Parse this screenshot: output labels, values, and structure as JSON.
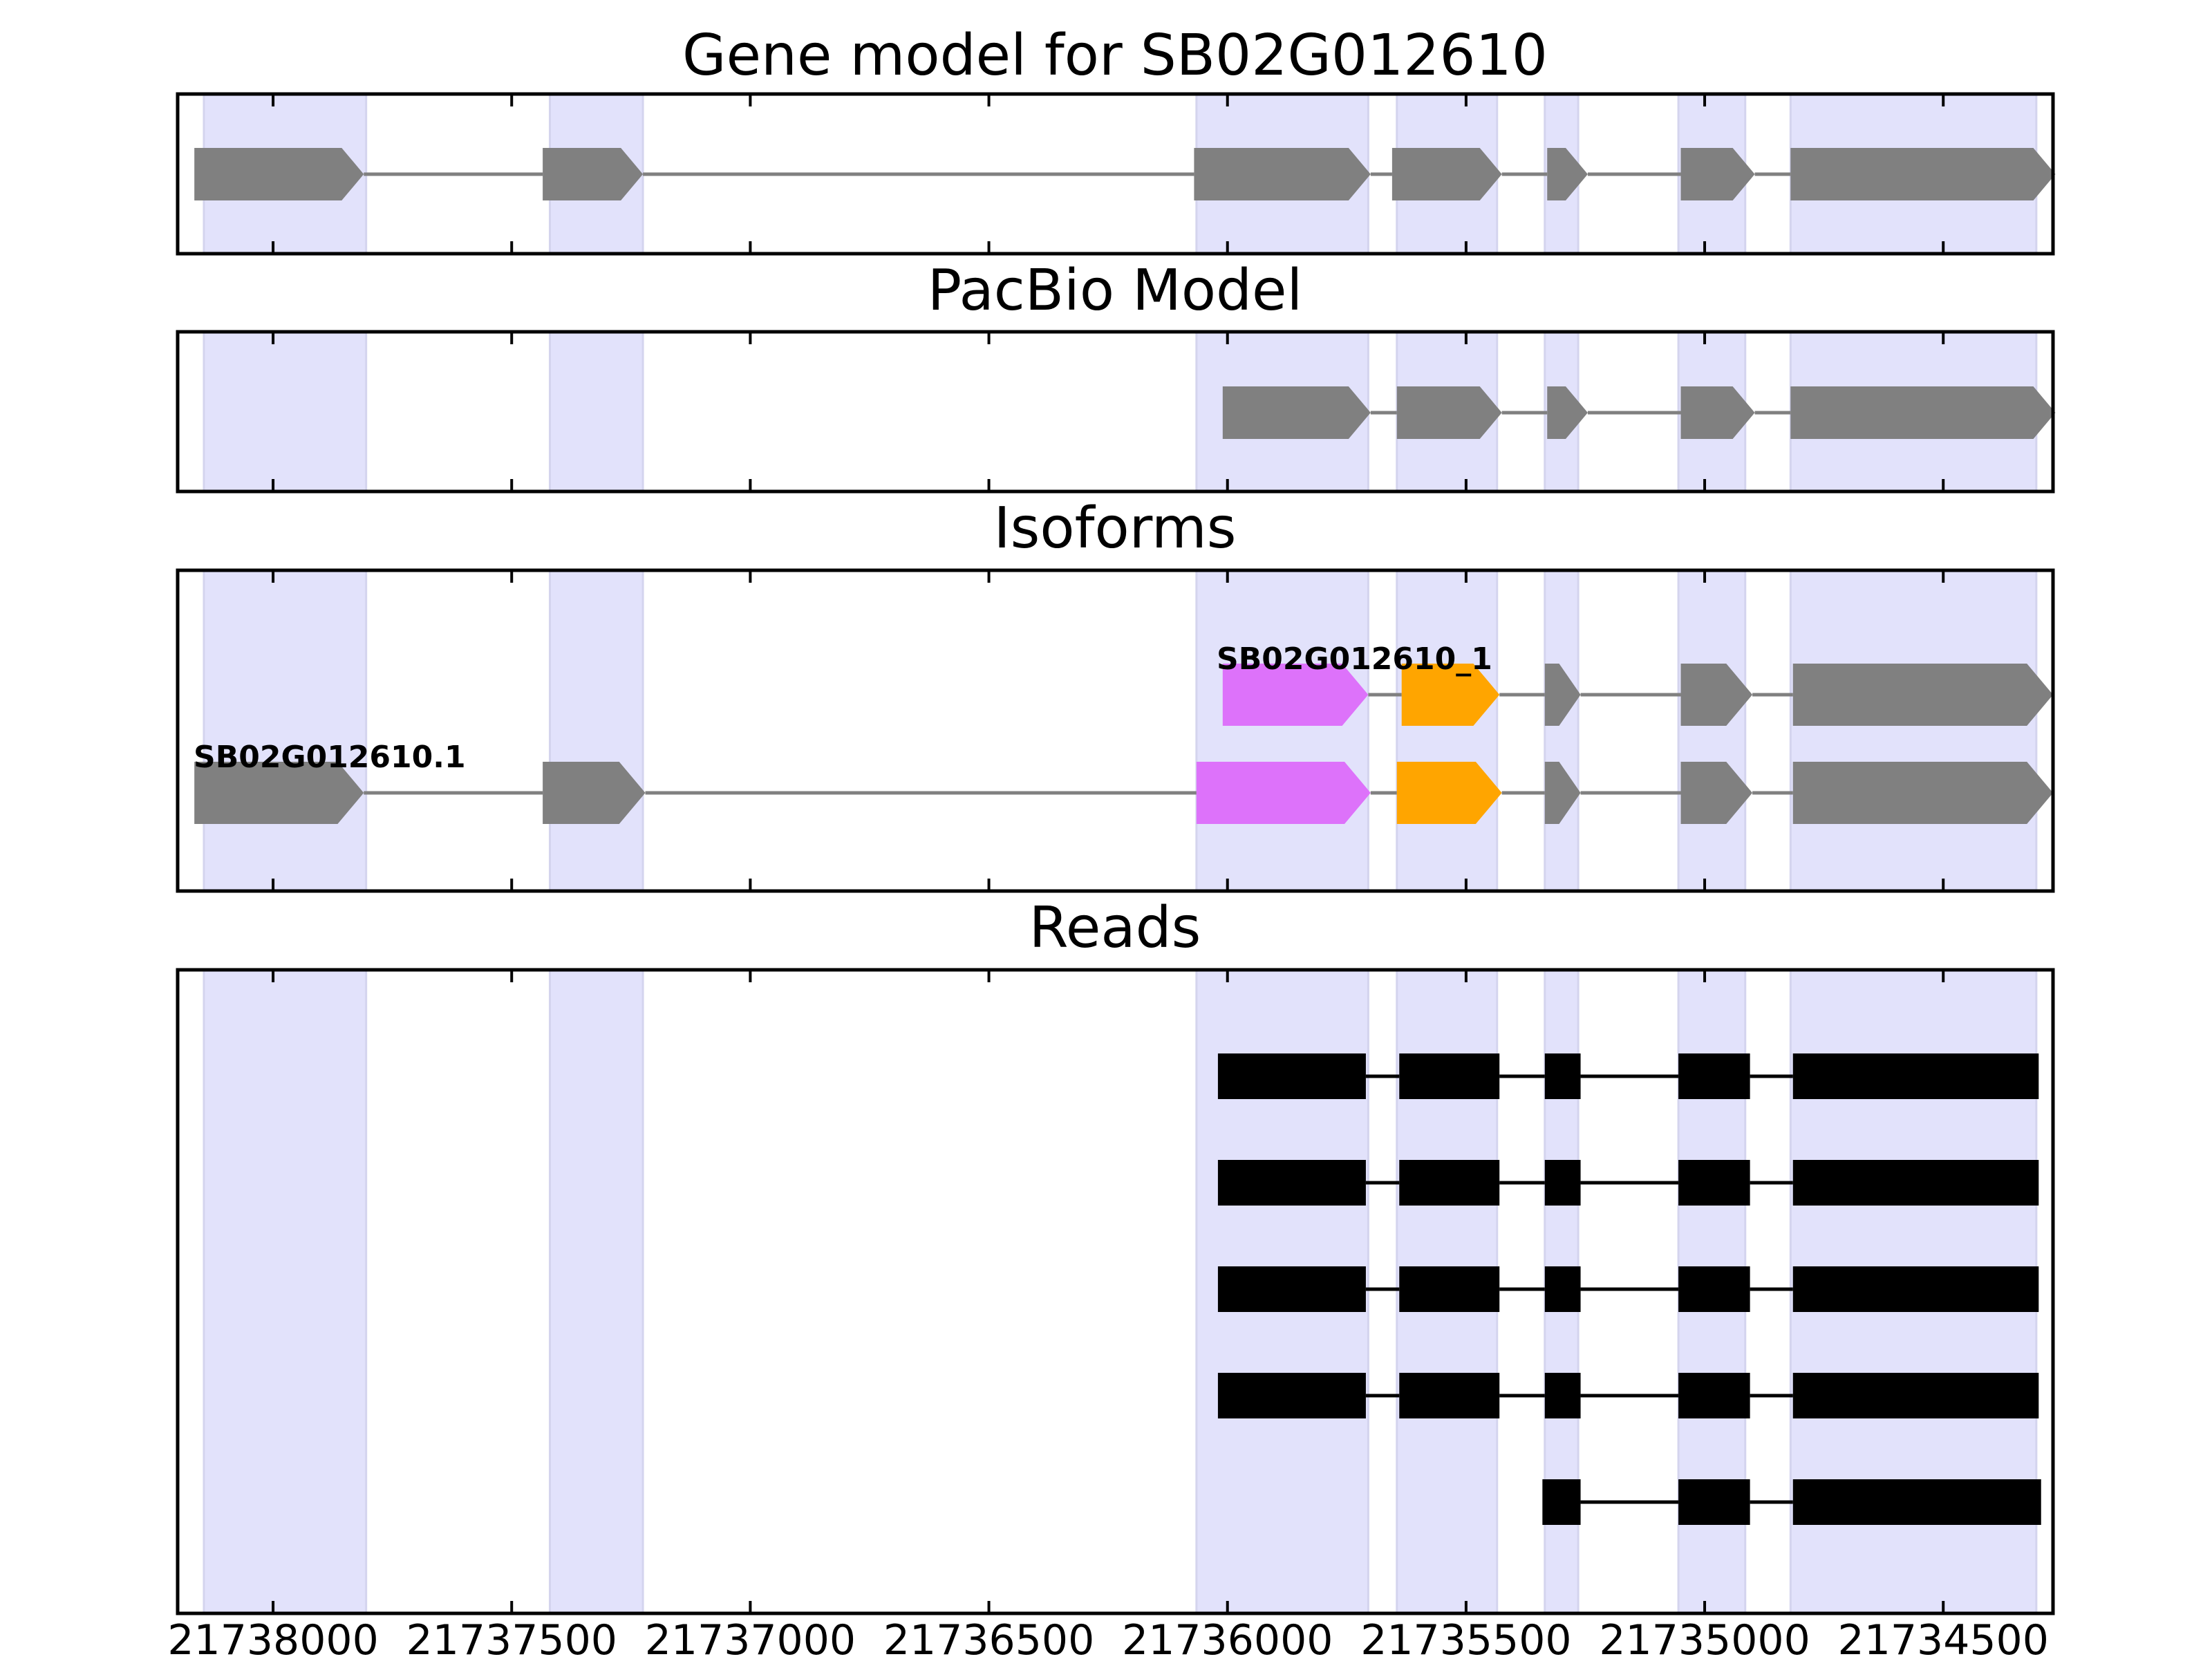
{
  "chart_data": {
    "type": "gene_structure",
    "x_axis": {
      "direction": "reversed",
      "xlim": [
        21738200,
        21734270
      ],
      "ticks": [
        21738000,
        21737500,
        21737000,
        21736500,
        21736000,
        21735500,
        21735000,
        21734500
      ],
      "tick_labels": [
        "21738000",
        "21737500",
        "21737000",
        "21736500",
        "21736000",
        "21735500",
        "21735000",
        "21734500"
      ]
    },
    "colors": {
      "highlight": "#e2e2fb",
      "highlight_edge": "#d4d4ee",
      "exon": "#808080",
      "intron": "#808080",
      "read": "#000000",
      "magenta": "#dd72fa",
      "orange": "#ffa500"
    },
    "highlight_regions": [
      [
        21738145,
        21737805
      ],
      [
        21737420,
        21737225
      ],
      [
        21736065,
        21735705
      ],
      [
        21735645,
        21735435
      ],
      [
        21735335,
        21735265
      ],
      [
        21735055,
        21734915
      ],
      [
        21734820,
        21734305
      ]
    ],
    "panels": [
      {
        "title": "Gene model for SB02G012610",
        "rows": [
          {
            "label": "",
            "style": "arrow",
            "exons": [
              {
                "start": 21738165,
                "end": 21737810
              },
              {
                "start": 21737435,
                "end": 21737225
              },
              {
                "start": 21736070,
                "end": 21735700
              },
              {
                "start": 21735655,
                "end": 21735425
              },
              {
                "start": 21735330,
                "end": 21735245
              },
              {
                "start": 21735050,
                "end": 21734895
              },
              {
                "start": 21734820,
                "end": 21734265
              }
            ]
          }
        ]
      },
      {
        "title": "PacBio Model",
        "rows": [
          {
            "label": "",
            "style": "arrow",
            "exons": [
              {
                "start": 21736010,
                "end": 21735700
              },
              {
                "start": 21735645,
                "end": 21735425
              },
              {
                "start": 21735330,
                "end": 21735245
              },
              {
                "start": 21735050,
                "end": 21734895
              },
              {
                "start": 21734820,
                "end": 21734265
              }
            ]
          }
        ]
      },
      {
        "title": "Isoforms",
        "rows": [
          {
            "label": "SB02G012610_1",
            "style": "arrow",
            "exons": [
              {
                "start": 21736010,
                "end": 21735705,
                "color": "magenta"
              },
              {
                "start": 21735635,
                "end": 21735430,
                "color": "orange"
              },
              {
                "start": 21735335,
                "end": 21735260
              },
              {
                "start": 21735050,
                "end": 21734900
              },
              {
                "start": 21734815,
                "end": 21734270
              }
            ]
          },
          {
            "label": "SB02G012610.1",
            "style": "arrow",
            "exons": [
              {
                "start": 21738165,
                "end": 21737810
              },
              {
                "start": 21737435,
                "end": 21737220
              },
              {
                "start": 21736065,
                "end": 21735700,
                "color": "magenta"
              },
              {
                "start": 21735645,
                "end": 21735425,
                "color": "orange"
              },
              {
                "start": 21735335,
                "end": 21735260
              },
              {
                "start": 21735050,
                "end": 21734900
              },
              {
                "start": 21734815,
                "end": 21734270
              }
            ]
          }
        ]
      },
      {
        "title": "Reads",
        "rows": [
          {
            "label": "",
            "style": "block",
            "exons": [
              {
                "start": 21736020,
                "end": 21735710
              },
              {
                "start": 21735640,
                "end": 21735430
              },
              {
                "start": 21735335,
                "end": 21735260
              },
              {
                "start": 21735055,
                "end": 21734905
              },
              {
                "start": 21734815,
                "end": 21734300
              }
            ]
          },
          {
            "label": "",
            "style": "block",
            "exons": [
              {
                "start": 21736020,
                "end": 21735710
              },
              {
                "start": 21735640,
                "end": 21735430
              },
              {
                "start": 21735335,
                "end": 21735260
              },
              {
                "start": 21735055,
                "end": 21734905
              },
              {
                "start": 21734815,
                "end": 21734300
              }
            ]
          },
          {
            "label": "",
            "style": "block",
            "exons": [
              {
                "start": 21736020,
                "end": 21735710
              },
              {
                "start": 21735640,
                "end": 21735430
              },
              {
                "start": 21735335,
                "end": 21735260
              },
              {
                "start": 21735055,
                "end": 21734905
              },
              {
                "start": 21734815,
                "end": 21734300
              }
            ]
          },
          {
            "label": "",
            "style": "block",
            "exons": [
              {
                "start": 21736020,
                "end": 21735710
              },
              {
                "start": 21735640,
                "end": 21735430
              },
              {
                "start": 21735335,
                "end": 21735260
              },
              {
                "start": 21735055,
                "end": 21734905
              },
              {
                "start": 21734815,
                "end": 21734300
              }
            ]
          },
          {
            "label": "",
            "style": "block",
            "exons": [
              {
                "start": 21735340,
                "end": 21735260
              },
              {
                "start": 21735055,
                "end": 21734905
              },
              {
                "start": 21734815,
                "end": 21734295
              }
            ]
          }
        ]
      }
    ]
  }
}
